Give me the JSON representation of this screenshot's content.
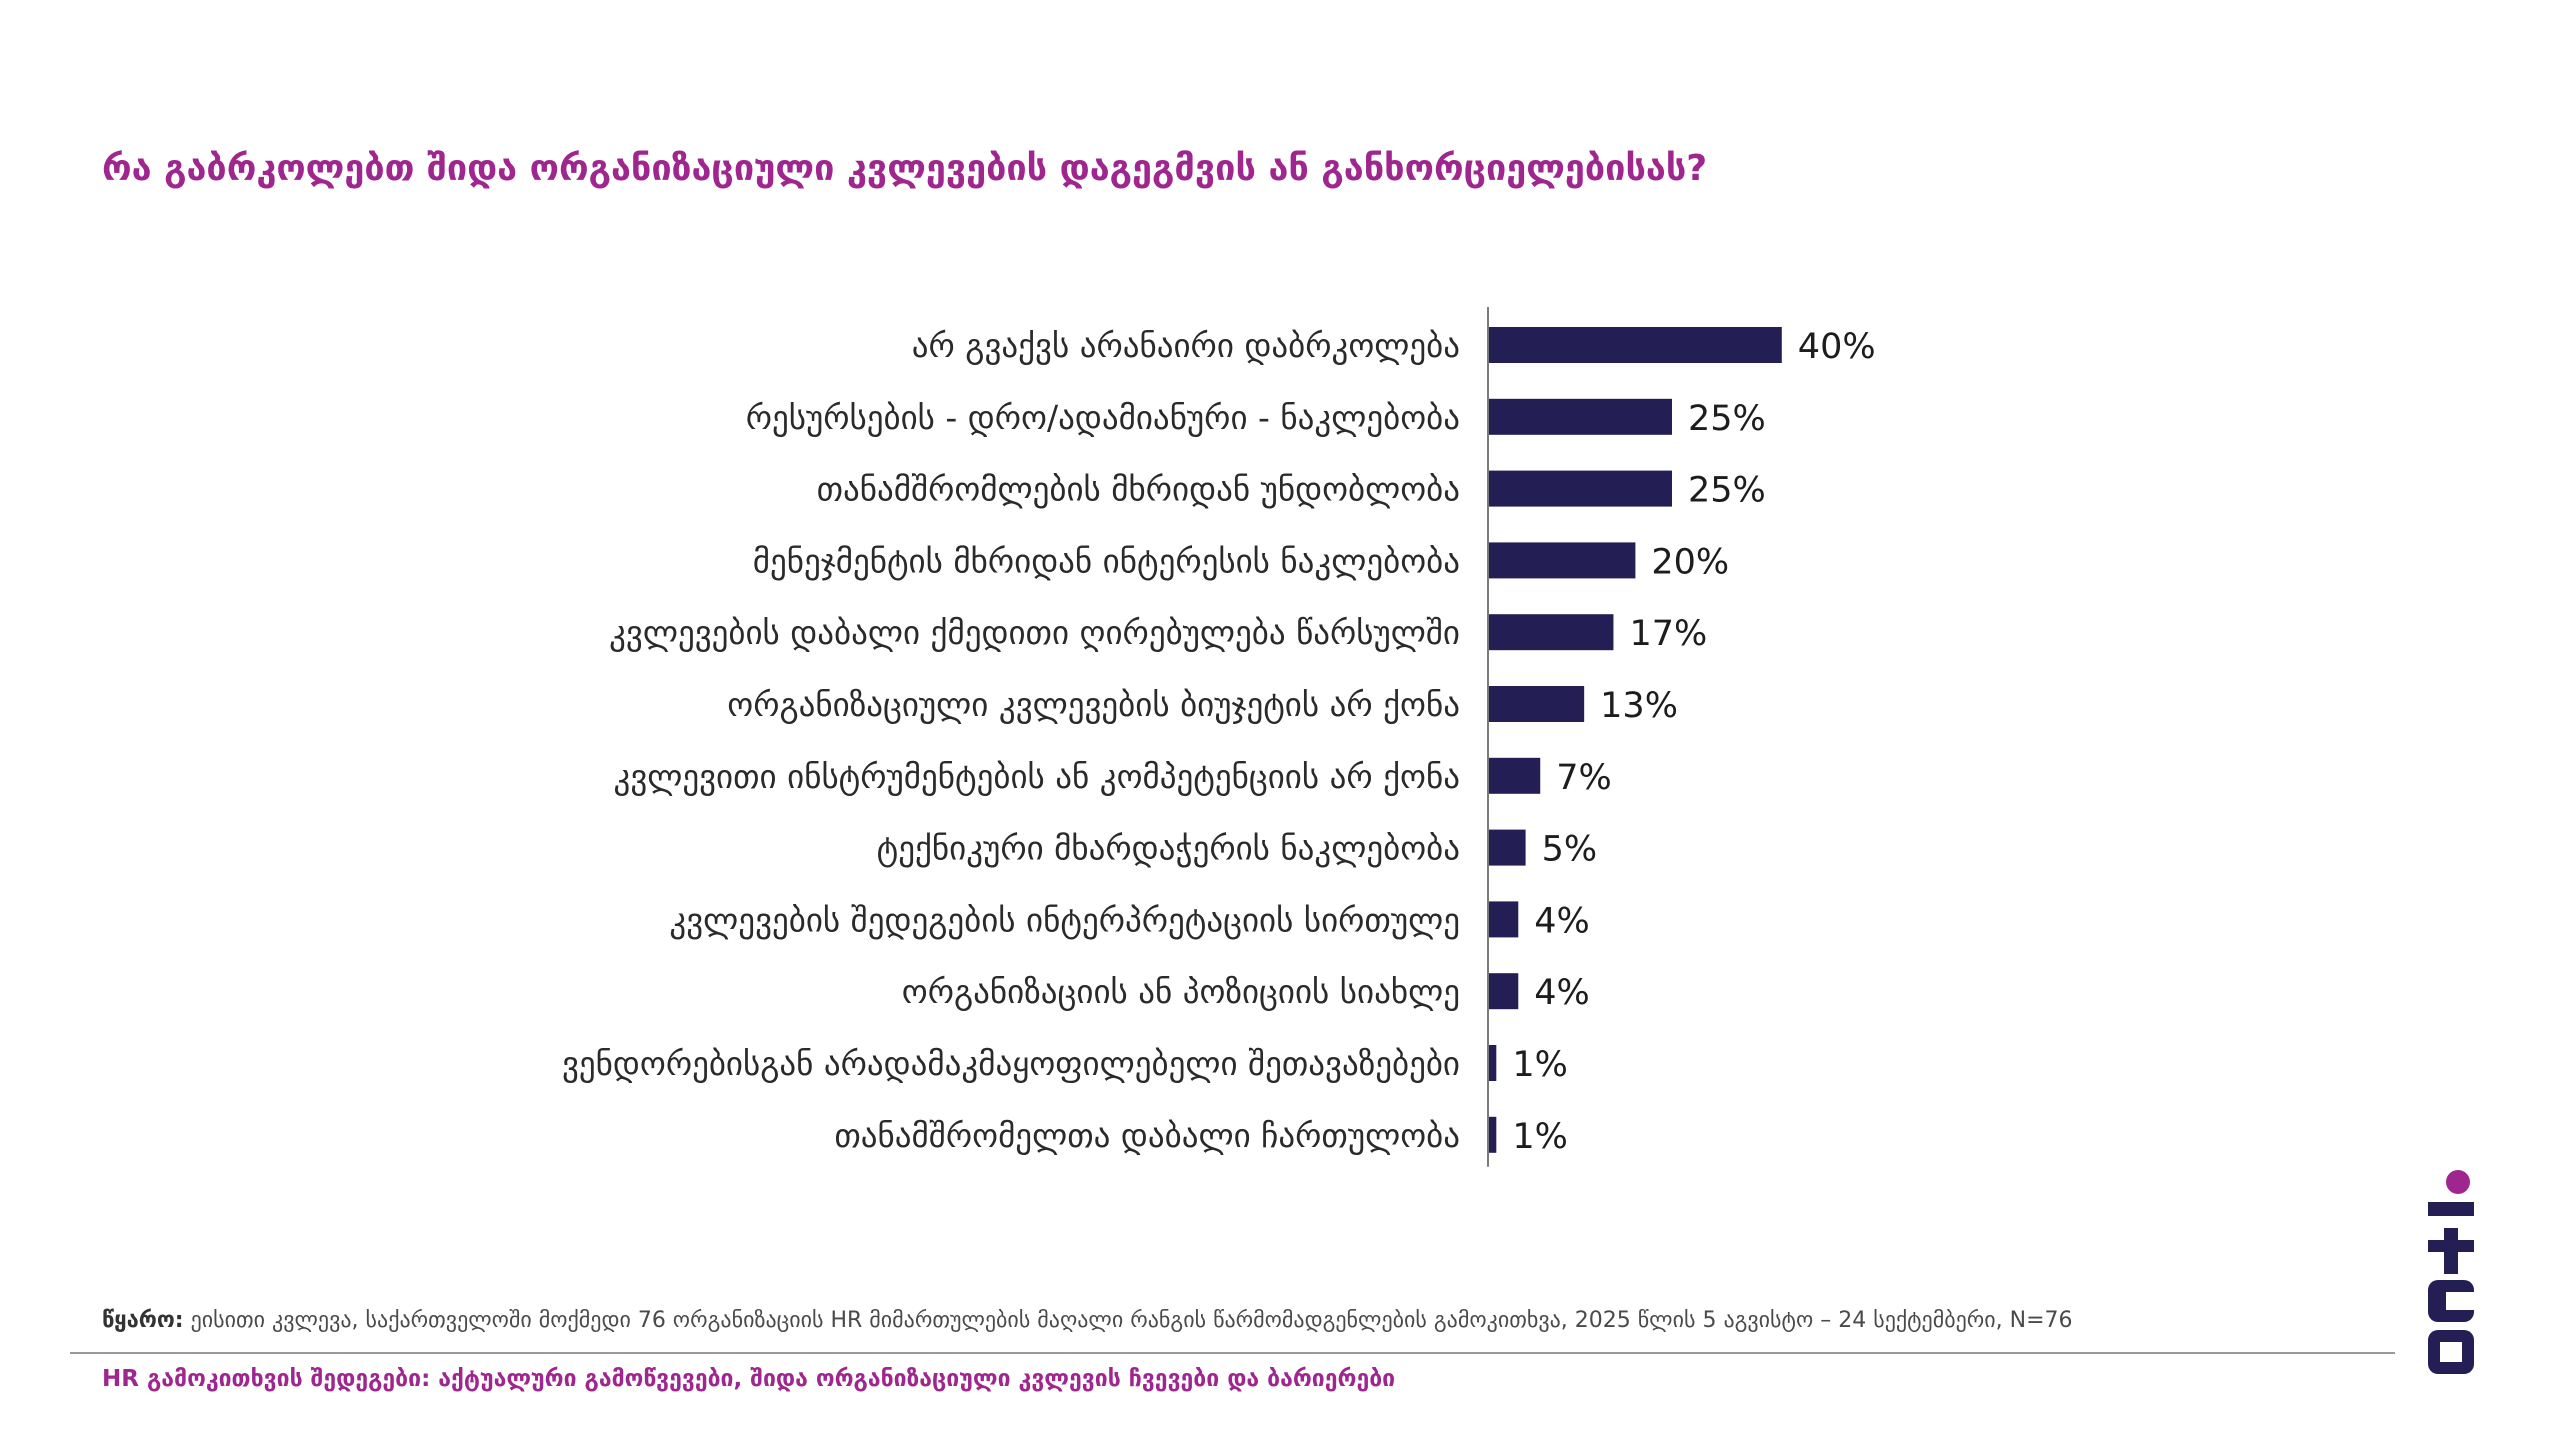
{
  "title": "რა გაბრკოლებთ შიდა ორგანიზაციული კვლევების დაგეგმვის ან განხორციელებისას?",
  "chart_data": {
    "type": "bar",
    "orientation": "horizontal",
    "categories": [
      "არ გვაქვს არანაირი დაბრკოლება",
      "რესურსების - დრო/ადამიანური - ნაკლებობა",
      "თანამშრომლების მხრიდან უნდობლობა",
      "მენეჯმენტის მხრიდან ინტერესის ნაკლებობა",
      "კვლევების დაბალი ქმედითი ღირებულება წარსულში",
      "ორგანიზაციული კვლევების ბიუჯეტის არ ქონა",
      "კვლევითი ინსტრუმენტების ან კომპეტენციის არ ქონა",
      "ტექნიკური მხარდაჭერის ნაკლებობა",
      "კვლევების შედეგების ინტერპრეტაციის სირთულე",
      "ორგანიზაციის ან პოზიციის სიახლე",
      "ვენდორებისგან არადამაკმაყოფილებელი შეთავაზებები",
      "თანამშრომელთა დაბალი ჩართულობა"
    ],
    "values": [
      40,
      25,
      25,
      20,
      17,
      13,
      7,
      5,
      4,
      4,
      1,
      1
    ],
    "value_labels": [
      "40%",
      "25%",
      "25%",
      "20%",
      "17%",
      "13%",
      "7%",
      "5%",
      "4%",
      "4%",
      "1%",
      "1%"
    ],
    "unit": "%",
    "xlim": [
      0,
      100
    ],
    "bar_color": "#231f55",
    "grid": false,
    "legend": "none"
  },
  "source": {
    "label": "წყარო:",
    "text": " ეისითი კვლევა, საქართველოში მოქმედი 76 ორგანიზაციის HR მიმართულების მაღალი რანგის წარმომადგენლების გამოკითხვა, 2025 წლის 5 აგვისტო – 24 სექტემბერი, N=76"
  },
  "footer": "HR გამოკითხვის შედეგები: აქტუალური გამოწვევები, შიდა ორგანიზაციული კვლევის ჩვევები და ბარიერები",
  "colors": {
    "accent": "#a0268f",
    "bar": "#231f55",
    "logo_dark": "#231f55",
    "logo_dot": "#a0268f"
  },
  "logo": {
    "icon": "acti-logo-icon"
  }
}
